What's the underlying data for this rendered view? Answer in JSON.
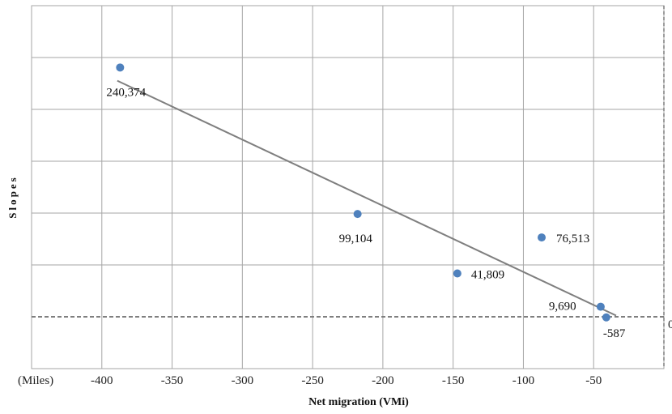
{
  "chart_data": {
    "type": "scatter",
    "title": "",
    "xlabel": "Net migration (VMi)",
    "ylabel": "Slopes",
    "x_unit_label": "(Miles)",
    "xlim": [
      -450,
      0
    ],
    "x_ticks": [
      -400,
      -350,
      -300,
      -250,
      -200,
      -150,
      -100,
      -50
    ],
    "x_tick_labels": [
      "-400",
      "-350",
      "-300",
      "-250",
      "-200",
      "-150",
      "-100",
      "-50"
    ],
    "ylim": [
      -50000,
      300000
    ],
    "y_gridlines": [
      -50000,
      0,
      50000,
      100000,
      150000,
      200000,
      250000,
      300000
    ],
    "y_tick_labels_visible": false,
    "zero_line_label": "0",
    "grid": true,
    "points": [
      {
        "x": -387,
        "y": 240374,
        "label": "240,374"
      },
      {
        "x": -218,
        "y": 99104,
        "label": "99,104"
      },
      {
        "x": -147,
        "y": 41809,
        "label": "41,809"
      },
      {
        "x": -87,
        "y": 76513,
        "label": "76,513"
      },
      {
        "x": -45,
        "y": 9690,
        "label": "9,690"
      },
      {
        "x": -41,
        "y": -587,
        "label": "-587"
      }
    ],
    "trendline": {
      "type": "linear",
      "x_start": -389,
      "x_end": -34
    },
    "colors": {
      "marker": "#4f81bd",
      "trendline": "#7f7f7f",
      "grid": "#a6a6a6",
      "zero_line": "#7f7f7f"
    }
  }
}
